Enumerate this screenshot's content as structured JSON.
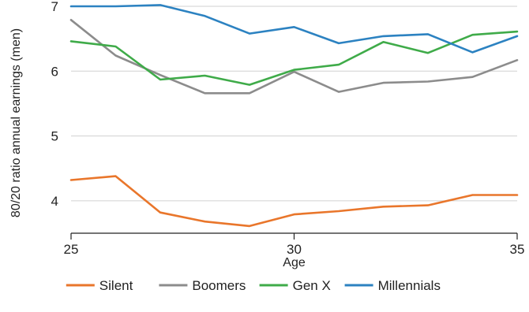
{
  "chart_data": {
    "type": "line",
    "title": "",
    "xlabel": "Age",
    "ylabel": "80/20 ratio annual earnings (men)",
    "xlim": [
      25,
      35
    ],
    "ylim": [
      3.5,
      7
    ],
    "x_ticks": [
      25,
      30,
      35
    ],
    "y_ticks": [
      4,
      5,
      6,
      7
    ],
    "grid": "horizontal",
    "legend_position": "bottom",
    "x": [
      25,
      26,
      27,
      28,
      29,
      30,
      31,
      32,
      33,
      34,
      35
    ],
    "series": [
      {
        "name": "Silent",
        "color": "#e9762b",
        "values": [
          4.32,
          4.38,
          3.82,
          3.68,
          3.61,
          3.79,
          3.84,
          3.91,
          3.93,
          4.09,
          4.09
        ]
      },
      {
        "name": "Boomers",
        "color": "#8c8c8c",
        "values": [
          6.79,
          6.24,
          5.94,
          5.66,
          5.66,
          5.99,
          5.68,
          5.82,
          5.84,
          5.91,
          6.17
        ]
      },
      {
        "name": "Gen X",
        "color": "#3fab49",
        "values": [
          6.46,
          6.38,
          5.87,
          5.93,
          5.79,
          6.02,
          6.1,
          6.45,
          6.28,
          6.56,
          6.61
        ]
      },
      {
        "name": "Millennials",
        "color": "#2c82c1",
        "values": [
          7.0,
          7.0,
          7.02,
          6.85,
          6.58,
          6.68,
          6.43,
          6.54,
          6.57,
          6.29,
          6.54
        ]
      }
    ]
  }
}
